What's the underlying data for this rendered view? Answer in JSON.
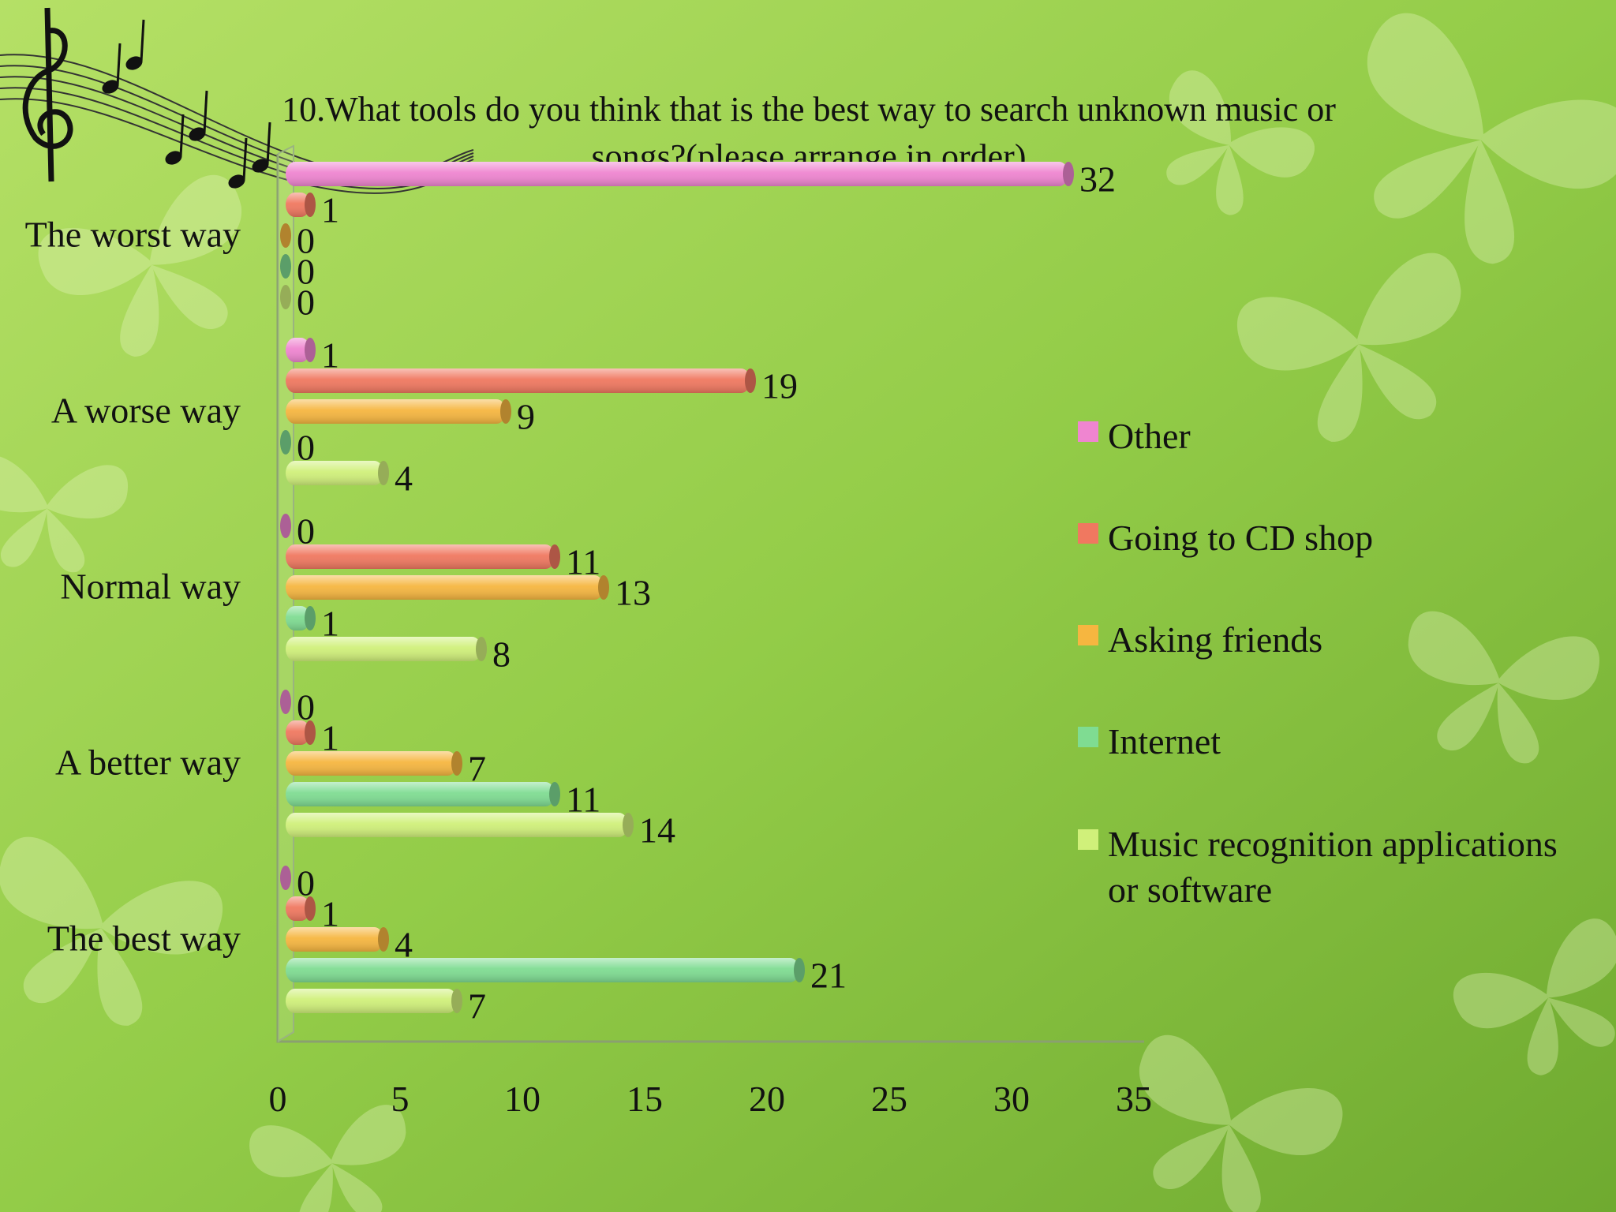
{
  "chart_data": {
    "type": "bar",
    "orientation": "horizontal",
    "title": "10.What tools do you think that is the best way to search unknown music or songs?(please arrange in order)",
    "title_lines": [
      "10.What tools do you think that is the best way to search unknown music or",
      "songs?(please arrange in order)"
    ],
    "categories": [
      "The worst way",
      "A worse way",
      "Normal way",
      "A better way",
      "The best way"
    ],
    "series": [
      {
        "name": "Other",
        "color": "#ef85d0",
        "values": [
          32,
          1,
          0,
          0,
          0
        ]
      },
      {
        "name": "Going to CD shop",
        "color": "#f07860",
        "values": [
          1,
          19,
          11,
          1,
          1
        ]
      },
      {
        "name": "Asking friends",
        "color": "#f6b640",
        "values": [
          0,
          9,
          13,
          7,
          4
        ]
      },
      {
        "name": "Internet",
        "color": "#7fdc92",
        "values": [
          0,
          0,
          1,
          11,
          21
        ]
      },
      {
        "name": "Music recognition applications or software",
        "color": "#d0f07a",
        "values": [
          0,
          4,
          8,
          14,
          7
        ]
      }
    ],
    "legend_lines": [
      [
        "Other"
      ],
      [
        "Going to CD shop"
      ],
      [
        "Asking friends"
      ],
      [
        "Internet"
      ],
      [
        "Music recognition applications",
        "or software"
      ]
    ],
    "xlim": [
      0,
      35
    ],
    "xticks": [
      "0",
      "5",
      "10",
      "15",
      "20",
      "25",
      "30",
      "35"
    ],
    "grid": false,
    "legend_position": "right",
    "data_labels": true
  },
  "decor": {
    "background": "green gradient with butterfly silhouettes",
    "corner_icon": "music-notes-icon"
  }
}
